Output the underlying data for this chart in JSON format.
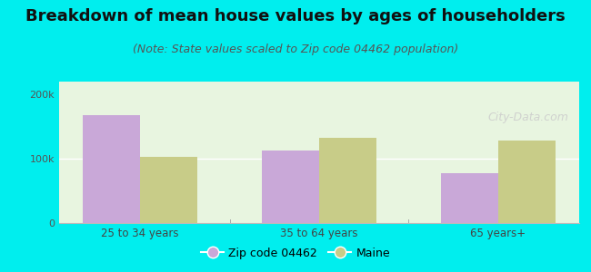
{
  "title": "Breakdown of mean house values by ages of householders",
  "subtitle": "(Note: State values scaled to Zip code 04462 population)",
  "categories": [
    "25 to 34 years",
    "35 to 64 years",
    "65 years+"
  ],
  "zip_values": [
    168000,
    113000,
    78000
  ],
  "maine_values": [
    103000,
    132000,
    128000
  ],
  "zip_color": "#c9a8d8",
  "maine_color": "#c8cc88",
  "ylim": [
    0,
    220000
  ],
  "ytick_vals": [
    0,
    100000,
    200000
  ],
  "ytick_labels": [
    "0",
    "100k",
    "200k"
  ],
  "legend_zip": "Zip code 04462",
  "legend_maine": "Maine",
  "background_color": "#00EEEE",
  "plot_bg": "#e8f5e0",
  "title_fontsize": 13,
  "subtitle_fontsize": 9,
  "bar_width": 0.32
}
